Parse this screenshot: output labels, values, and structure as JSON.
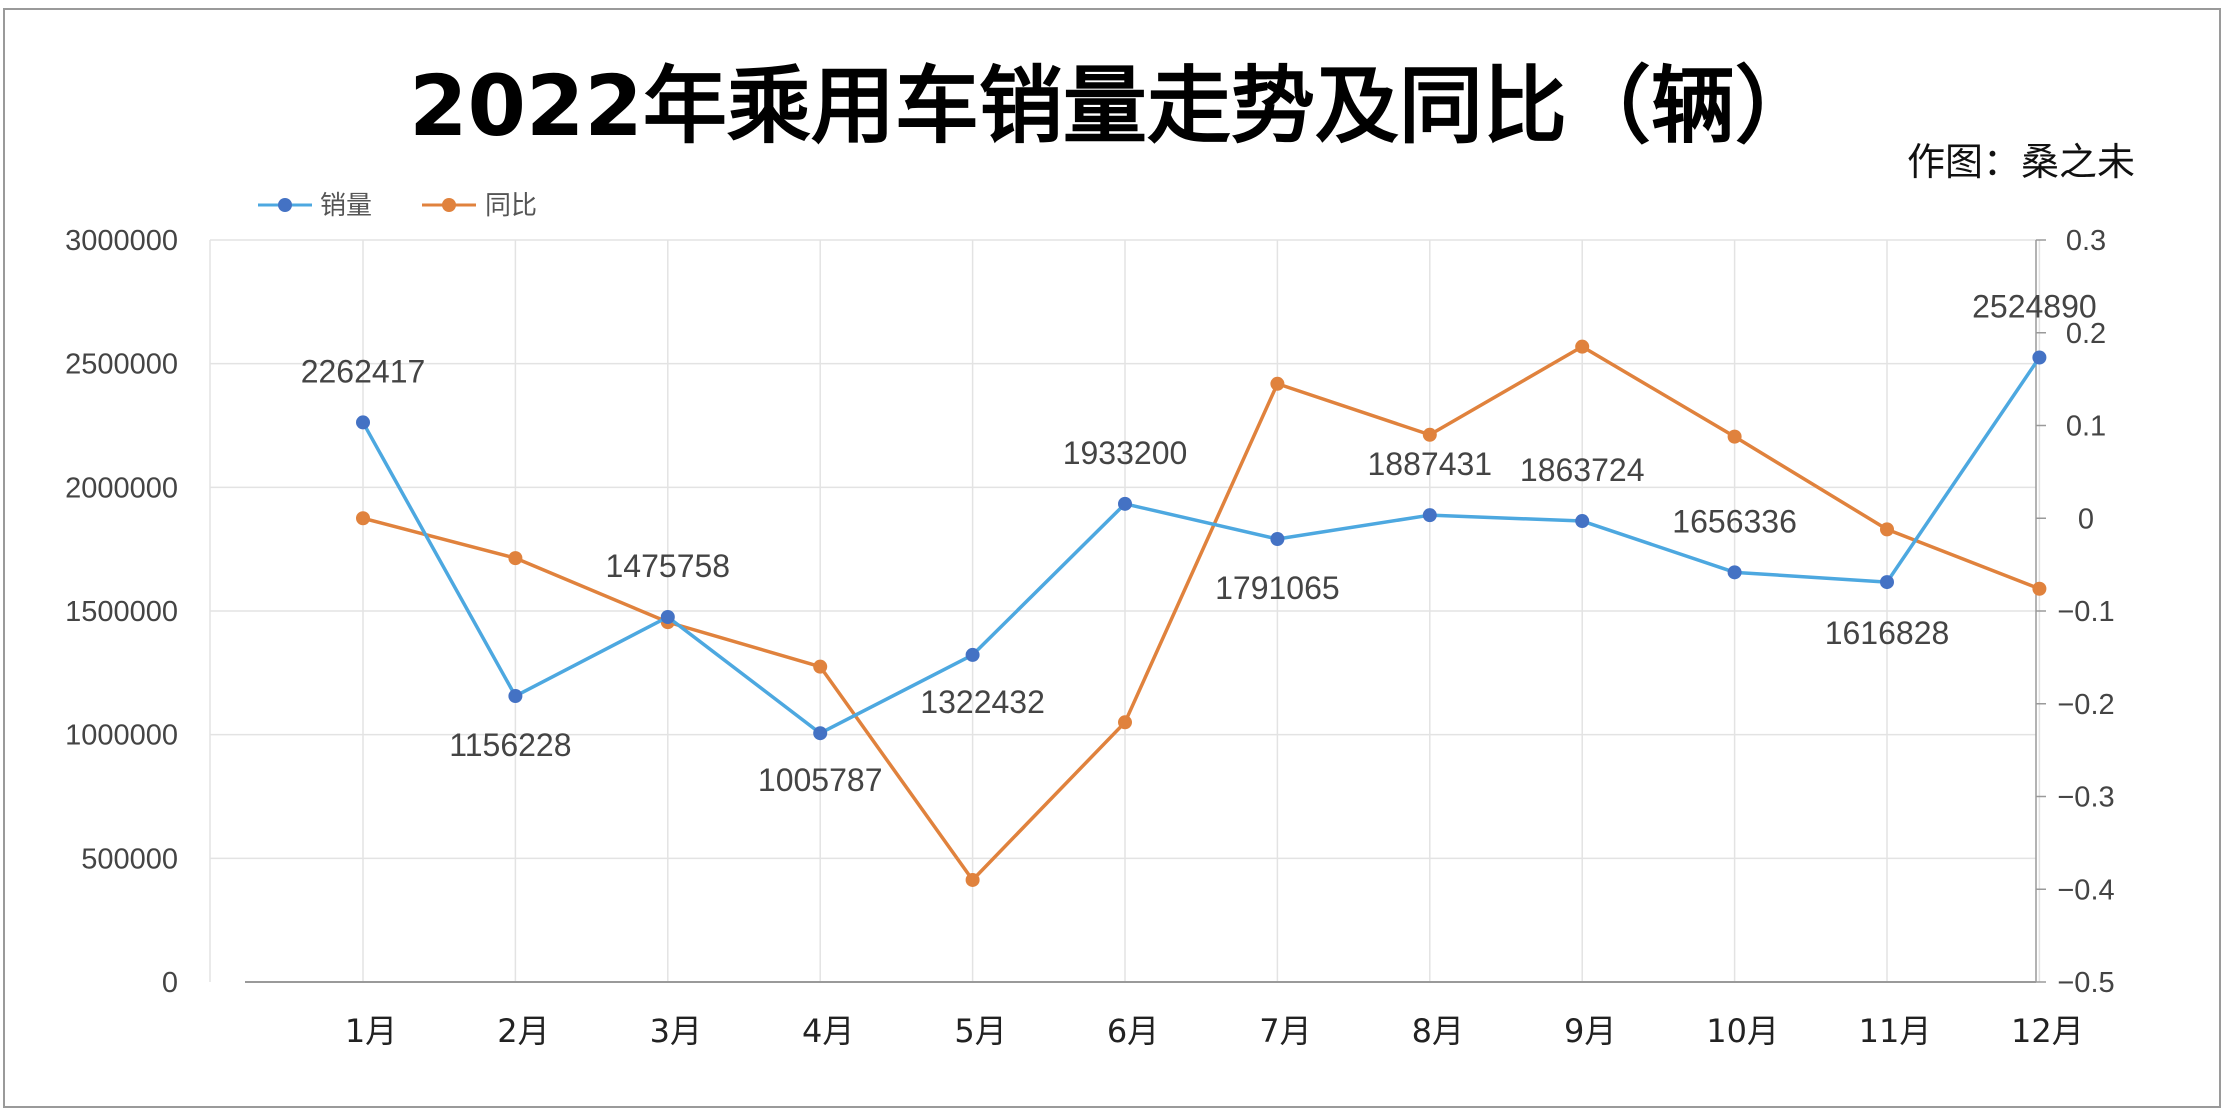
{
  "title": "2022年乘用车销量走势及同比（辆）",
  "credit": "作图：桑之未",
  "legend": {
    "sales": "销量",
    "yoy": "同比"
  },
  "colors": {
    "sales": "#4DA8E0",
    "sales_marker": "#4472C4",
    "yoy": "#E0823D",
    "grid": "#e3e3e3",
    "axis": "#9a9a9a"
  },
  "chart_data": {
    "type": "line",
    "title": "2022年乘用车销量走势及同比（辆）",
    "categories": [
      "1月",
      "2月",
      "3月",
      "4月",
      "5月",
      "6月",
      "7月",
      "8月",
      "9月",
      "10月",
      "11月",
      "12月"
    ],
    "series": [
      {
        "name": "销量",
        "axis": "left",
        "values": [
          2262417,
          1156228,
          1475758,
          1005787,
          1322432,
          1933200,
          1791065,
          1887431,
          1863724,
          1656336,
          1616828,
          2524890
        ],
        "labels": [
          "2262417",
          "1156228",
          "1475758",
          "1005787",
          "1322432",
          "1933200",
          "1791065",
          "1887431",
          "1863724",
          "1656336",
          "1616828",
          "2524890"
        ]
      },
      {
        "name": "同比",
        "axis": "right",
        "values": [
          0.0,
          -0.043,
          -0.112,
          -0.16,
          -0.39,
          -0.22,
          0.145,
          0.09,
          0.185,
          0.088,
          -0.012,
          -0.076
        ]
      }
    ],
    "ylim_left": [
      0,
      3000000
    ],
    "ylim_right": [
      -0.5,
      0.3
    ],
    "yticks_left": [
      "0",
      "500000",
      "1000000",
      "1500000",
      "2000000",
      "2500000",
      "3000000"
    ],
    "yticks_right": [
      "−0.5",
      "−0.4",
      "−0.3",
      "−0.2",
      "−0.1",
      "0",
      "0.1",
      "0.2",
      "0.3"
    ],
    "grid": true,
    "legend_position": "top-left"
  }
}
